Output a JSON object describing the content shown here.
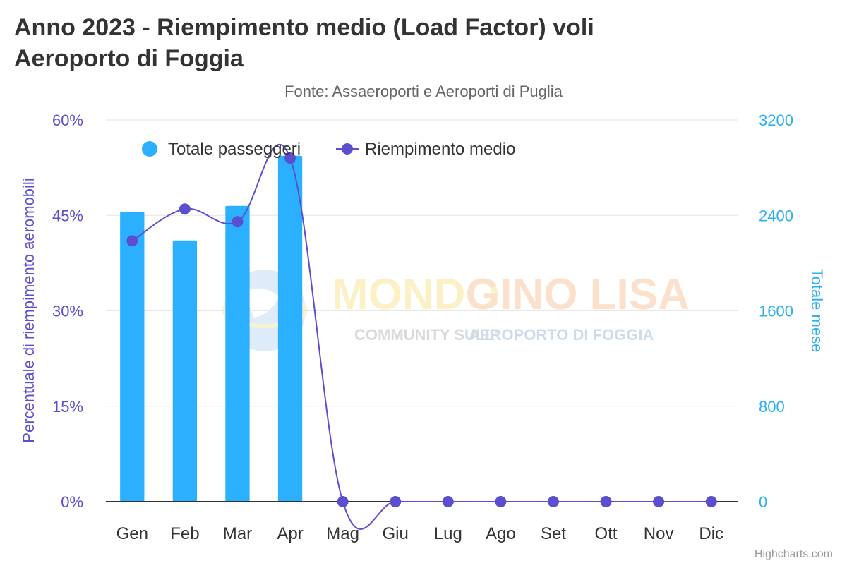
{
  "chart_data": {
    "type": "bar",
    "title": "Anno 2023 - Riempimento medio (Load Factor) voli Aeroporto di Foggia",
    "title_lines": [
      "Anno 2023 - Riempimento medio (Load Factor) voli",
      "Aeroporto di Foggia"
    ],
    "subtitle": "Fonte: Assaeroporti e Aeroporti di Puglia",
    "categories": [
      "Gen",
      "Feb",
      "Mar",
      "Apr",
      "Mag",
      "Giu",
      "Lug",
      "Ago",
      "Set",
      "Ott",
      "Nov",
      "Dic"
    ],
    "series": [
      {
        "name": "Totale passeggeri",
        "type": "bar",
        "axis": "right",
        "color": "#2bb0ff",
        "values": [
          2430,
          2190,
          2480,
          2900,
          0,
          0,
          0,
          0,
          0,
          0,
          0,
          0
        ]
      },
      {
        "name": "Riempimento medio",
        "type": "line",
        "axis": "left",
        "color": "#5b4fcf",
        "values": [
          41.0,
          46.0,
          44.0,
          54.0,
          0,
          0,
          0,
          0,
          0,
          0,
          0,
          0
        ]
      }
    ],
    "y_left": {
      "label": "Percentuale di riempimento aeromobili",
      "ylim": [
        0,
        60
      ],
      "ticks": [
        "0%",
        "15%",
        "30%",
        "45%",
        "60%"
      ],
      "tick_values": [
        0,
        15,
        30,
        45,
        60
      ]
    },
    "y_right": {
      "label": "Totale mese",
      "ylim": [
        0,
        3200
      ],
      "ticks": [
        "0",
        "800",
        "1600",
        "2400",
        "3200"
      ],
      "tick_values": [
        0,
        800,
        1600,
        2400,
        3200
      ]
    },
    "grid": true,
    "legend_position": "top-left"
  },
  "watermark": {
    "line1_a": "MONDO",
    "line1_b": "GINO LISA",
    "line2_a": "COMMUNITY SULL'",
    "line2_b": "AEROPORTO DI FOGGIA"
  },
  "credits": "Highcharts.com",
  "colors": {
    "bar": "#2bb0ff",
    "line": "#5b4fcf",
    "left_axis": "#5b4fcf",
    "right_axis": "#2bb0f5",
    "grid": "#e6e6e6"
  }
}
